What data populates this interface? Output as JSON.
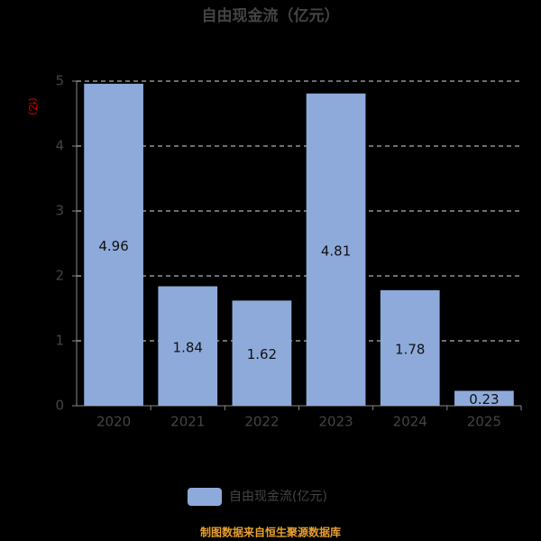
{
  "chart_data": {
    "type": "bar",
    "title": "自由现金流（亿元）",
    "y_label": "(亿)",
    "categories": [
      "2020",
      "2021",
      "2022",
      "2023",
      "2024",
      "2025"
    ],
    "series": [
      {
        "name": "自由现金流(亿元)",
        "color": "#8eaadb",
        "values": [
          4.96,
          1.84,
          1.62,
          4.81,
          1.78,
          0.23
        ]
      }
    ],
    "ylim": [
      0,
      5
    ],
    "yticks": [
      0,
      1,
      2,
      3,
      4,
      5
    ],
    "grid": true,
    "source": "制图数据来自恒生聚源数据库"
  }
}
